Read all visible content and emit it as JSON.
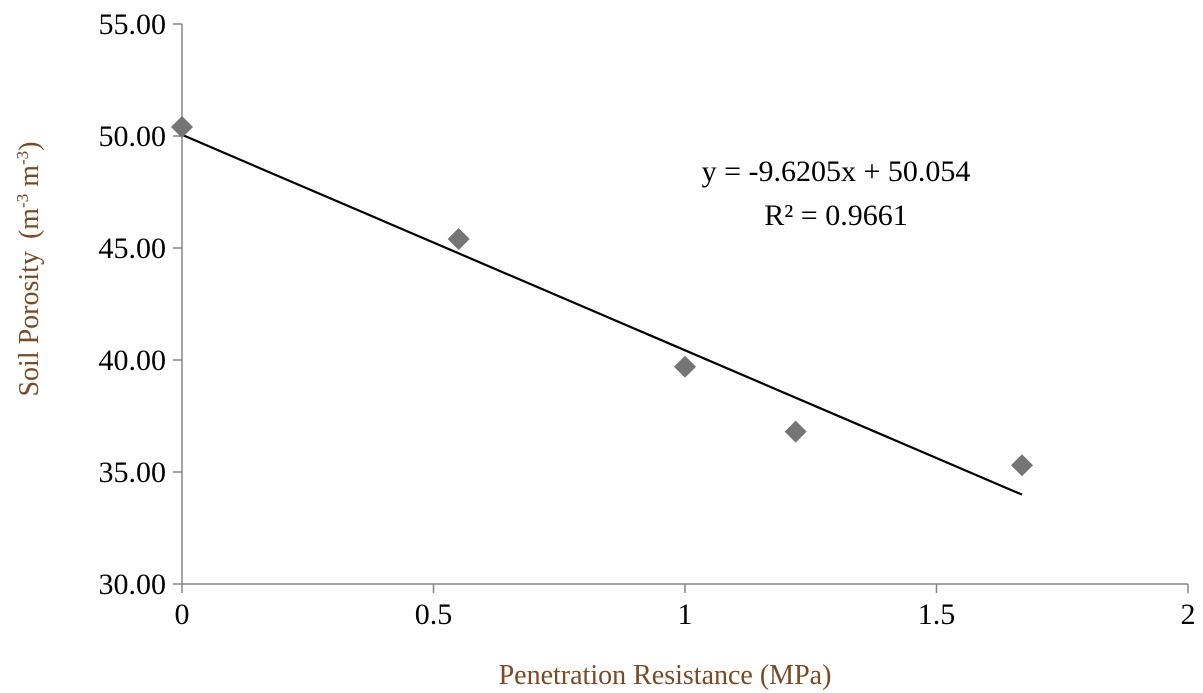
{
  "chart_data": {
    "type": "scatter",
    "xlabel": "Penetration Resistance (MPa)",
    "ylabel_main": "Soil Porosity",
    "ylabel_unit_base1": "(m",
    "ylabel_unit_sup1": "-3",
    "ylabel_unit_base2": " m",
    "ylabel_unit_sup2": "-3",
    "ylabel_unit_close": ")",
    "xlim": [
      0,
      2
    ],
    "ylim": [
      30,
      55
    ],
    "x_ticks": [
      0,
      0.5,
      1,
      1.5,
      2
    ],
    "x_tick_labels": [
      "0",
      "0.5",
      "1",
      "1.5",
      "2"
    ],
    "y_ticks": [
      30,
      35,
      40,
      45,
      50,
      55
    ],
    "y_tick_labels": [
      "30.00",
      "35.00",
      "40.00",
      "45.00",
      "50.00",
      "55.00"
    ],
    "grid": false,
    "legend": "none",
    "series": [
      {
        "x": [
          0,
          0.55,
          1.0,
          1.22,
          1.67
        ],
        "y": [
          50.4,
          45.4,
          39.7,
          36.8,
          35.3
        ]
      }
    ],
    "trendline": {
      "slope": -9.6205,
      "intercept": 50.054,
      "x_range": [
        0,
        1.67
      ],
      "equation": "y = -9.6205x  + 50.054",
      "r_squared": "R² = 0.9661"
    },
    "colors": {
      "marker": "#757575",
      "trendline": "#000000",
      "axis": "#858585",
      "axis_title": "#7a4a26",
      "text": "#000000"
    }
  }
}
